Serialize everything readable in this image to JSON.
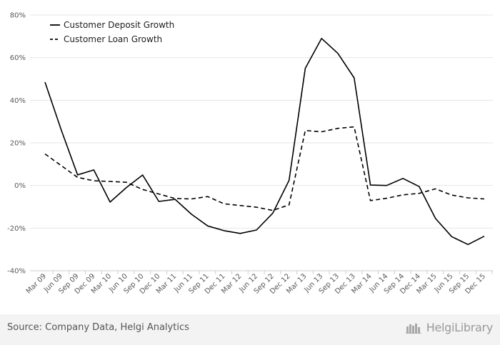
{
  "chart_data": {
    "type": "line",
    "categories": [
      "Mar 09",
      "Jun 09",
      "Sep 09",
      "Dec 09",
      "Mar 10",
      "Jun 10",
      "Sep 10",
      "Dec 10",
      "Mar 11",
      "Jun 11",
      "Sep 11",
      "Dec 11",
      "Mar 12",
      "Jun 12",
      "Sep 12",
      "Dec 12",
      "Mar 13",
      "Jun 13",
      "Sep 13",
      "Dec 13",
      "Mar 14",
      "Jun 14",
      "Sep 14",
      "Dec 14",
      "Mar 15",
      "Jun 15",
      "Sep 15",
      "Dec 15"
    ],
    "series": [
      {
        "name": "Customer Deposit Growth",
        "style": "solid",
        "color": "#000000",
        "values": [
          48.5,
          26.0,
          5.0,
          7.3,
          -7.8,
          -1.0,
          4.9,
          -7.5,
          -6.5,
          -13.5,
          -19.0,
          -21.2,
          -22.5,
          -20.9,
          -13.0,
          2.4,
          55.0,
          69.0,
          62.0,
          50.5,
          0.2,
          0.0,
          3.3,
          -0.5,
          -15.5,
          -24.0,
          -27.7,
          -23.8
        ]
      },
      {
        "name": "Customer Loan Growth",
        "style": "dashed",
        "color": "#000000",
        "values": [
          14.8,
          9.3,
          3.8,
          2.2,
          1.9,
          1.5,
          -1.9,
          -4.0,
          -6.1,
          -6.3,
          -5.2,
          -8.6,
          -9.4,
          -10.2,
          -11.7,
          -9.1,
          25.8,
          25.2,
          26.8,
          27.5,
          -7.1,
          -6.0,
          -4.4,
          -3.7,
          -1.6,
          -4.5,
          -5.8,
          -6.3
        ]
      }
    ],
    "yticks": [
      "80%",
      "60%",
      "40%",
      "20%",
      "0%",
      "-20%",
      "-40%"
    ],
    "ylim": [
      -40,
      80
    ],
    "grid": true,
    "legend_position": "top-left"
  },
  "footer": {
    "source": "Source: Company Data, Helgi Analytics",
    "brand": "HelgiLibrary"
  }
}
